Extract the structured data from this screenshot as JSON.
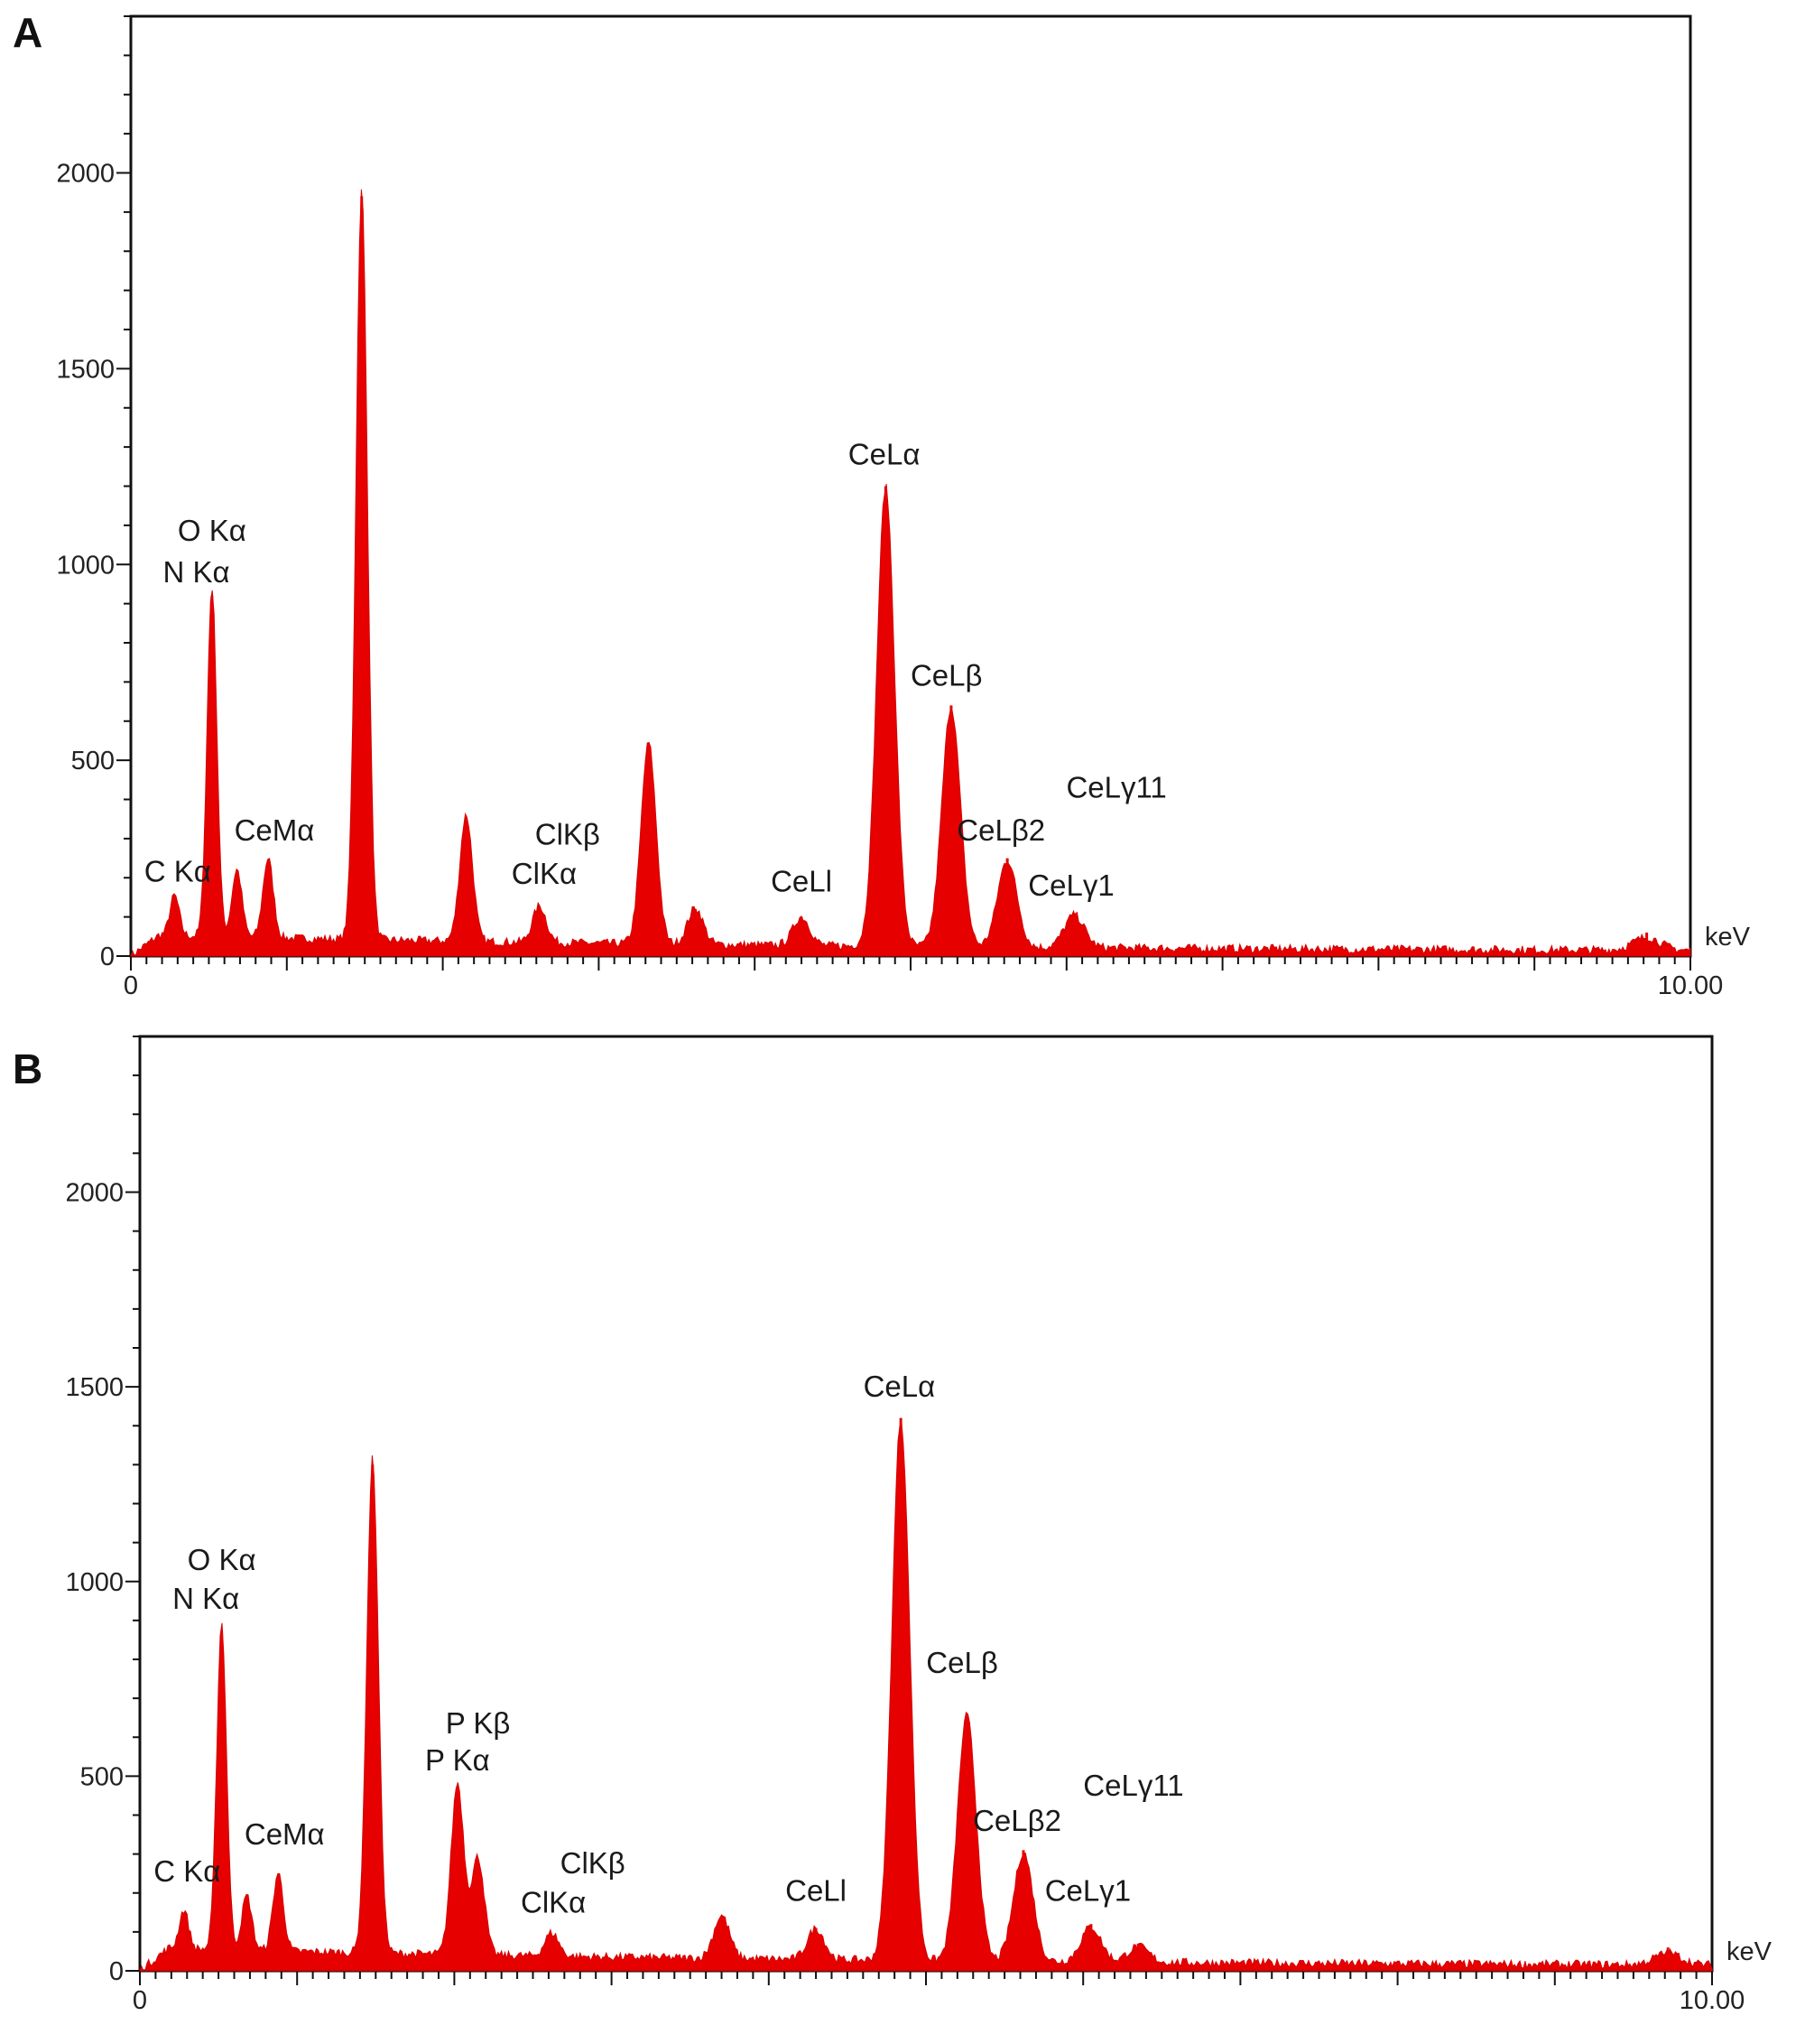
{
  "figure": {
    "panels": [
      "A",
      "B"
    ]
  },
  "chart_data": [
    {
      "type": "area",
      "panel": "A",
      "xlabel": "keV",
      "ylabel": "",
      "xlim": [
        0,
        10
      ],
      "ylim": [
        0,
        2400
      ],
      "x_tick_labels": [
        "0",
        "10.00"
      ],
      "y_ticks": [
        0,
        500,
        1000,
        1500,
        2000
      ],
      "y_tick_labels": [
        "0",
        "500",
        "1000",
        "1500",
        "2000"
      ],
      "color": "#e60000",
      "background_counts": 45,
      "peaks": [
        {
          "x": 0.28,
          "y": 130
        },
        {
          "x": 0.52,
          "y": 920
        },
        {
          "x": 0.68,
          "y": 200
        },
        {
          "x": 0.88,
          "y": 230
        },
        {
          "x": 1.48,
          "y": 1940
        },
        {
          "x": 2.15,
          "y": 350
        },
        {
          "x": 2.62,
          "y": 120
        },
        {
          "x": 3.32,
          "y": 540
        },
        {
          "x": 3.62,
          "y": 120
        },
        {
          "x": 4.3,
          "y": 100
        },
        {
          "x": 4.84,
          "y": 1200
        },
        {
          "x": 5.26,
          "y": 640
        },
        {
          "x": 5.62,
          "y": 250
        },
        {
          "x": 6.05,
          "y": 110
        },
        {
          "x": 9.72,
          "y": 60
        }
      ],
      "annotations": [
        {
          "text": "O Kα",
          "x": 0.52,
          "y": 1060
        },
        {
          "text": "N Kα",
          "x": 0.42,
          "y": 955
        },
        {
          "text": "C Kα",
          "x": 0.3,
          "y": 190
        },
        {
          "text": "CeMα",
          "x": 0.92,
          "y": 295
        },
        {
          "text": "ClKβ",
          "x": 2.8,
          "y": 285
        },
        {
          "text": "ClKα",
          "x": 2.65,
          "y": 185
        },
        {
          "text": "CeLl",
          "x": 4.3,
          "y": 165
        },
        {
          "text": "CeLα",
          "x": 4.83,
          "y": 1255
        },
        {
          "text": "CeLβ",
          "x": 5.23,
          "y": 690
        },
        {
          "text": "CeLβ2",
          "x": 5.58,
          "y": 295
        },
        {
          "text": "CeLγ11",
          "x": 6.32,
          "y": 405
        },
        {
          "text": "CeLγ1",
          "x": 6.03,
          "y": 155
        }
      ]
    },
    {
      "type": "area",
      "panel": "B",
      "xlabel": "keV",
      "ylabel": "",
      "xlim": [
        0,
        10
      ],
      "ylim": [
        0,
        2400
      ],
      "x_tick_labels": [
        "0",
        "10.00"
      ],
      "y_ticks": [
        0,
        500,
        1000,
        1500,
        2000
      ],
      "y_tick_labels": [
        "0",
        "500",
        "1000",
        "1500",
        "2000"
      ],
      "color": "#e60000",
      "background_counts": 50,
      "peaks": [
        {
          "x": 0.28,
          "y": 130
        },
        {
          "x": 0.52,
          "y": 870
        },
        {
          "x": 0.68,
          "y": 170
        },
        {
          "x": 0.88,
          "y": 230
        },
        {
          "x": 1.48,
          "y": 1300
        },
        {
          "x": 2.02,
          "y": 470
        },
        {
          "x": 2.15,
          "y": 280
        },
        {
          "x": 2.62,
          "y": 90
        },
        {
          "x": 3.7,
          "y": 140
        },
        {
          "x": 4.3,
          "y": 110
        },
        {
          "x": 4.84,
          "y": 1420
        },
        {
          "x": 5.26,
          "y": 660
        },
        {
          "x": 5.62,
          "y": 310
        },
        {
          "x": 6.05,
          "y": 120
        },
        {
          "x": 6.35,
          "y": 70
        },
        {
          "x": 9.72,
          "y": 60
        }
      ],
      "annotations": [
        {
          "text": "O Kα",
          "x": 0.52,
          "y": 1030
        },
        {
          "text": "N Kα",
          "x": 0.42,
          "y": 930
        },
        {
          "text": "C Kα",
          "x": 0.3,
          "y": 230
        },
        {
          "text": "CeMα",
          "x": 0.92,
          "y": 325
        },
        {
          "text": "P Kβ",
          "x": 2.15,
          "y": 610
        },
        {
          "text": "P Kα",
          "x": 2.02,
          "y": 515
        },
        {
          "text": "ClKβ",
          "x": 2.88,
          "y": 250
        },
        {
          "text": "ClKα",
          "x": 2.63,
          "y": 150
        },
        {
          "text": "CeLl",
          "x": 4.3,
          "y": 180
        },
        {
          "text": "CeLα",
          "x": 4.83,
          "y": 1475
        },
        {
          "text": "CeLβ",
          "x": 5.23,
          "y": 765
        },
        {
          "text": "CeLβ2",
          "x": 5.58,
          "y": 360
        },
        {
          "text": "CeLγ11",
          "x": 6.32,
          "y": 450
        },
        {
          "text": "CeLγ1",
          "x": 6.03,
          "y": 180
        }
      ]
    }
  ]
}
